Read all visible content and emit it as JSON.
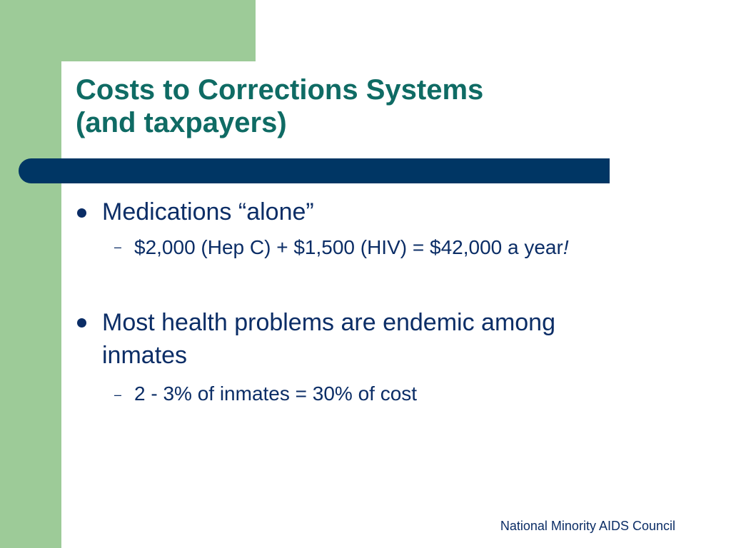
{
  "slide": {
    "title_line1": "Costs to Corrections Systems",
    "title_line2": "(and taxpayers)",
    "bullets": [
      {
        "text": "Medications “alone”",
        "sub": [
          {
            "text": "$2,000 (Hep C) + $1,500 (HIV) = $42,000 a year",
            "suffix": "!"
          }
        ]
      },
      {
        "text_line1": "Most health problems are endemic among",
        "text_line2": "inmates",
        "sub": [
          {
            "text": "2 - 3% of inmates = 30% of cost"
          }
        ]
      }
    ],
    "dash_glyph": "–",
    "footer": "National Minority AIDS Council"
  },
  "colors": {
    "green": "#9dcb98",
    "navy_bar": "#003664",
    "title": "#0f6b64",
    "body_text": "#0b2d66"
  }
}
